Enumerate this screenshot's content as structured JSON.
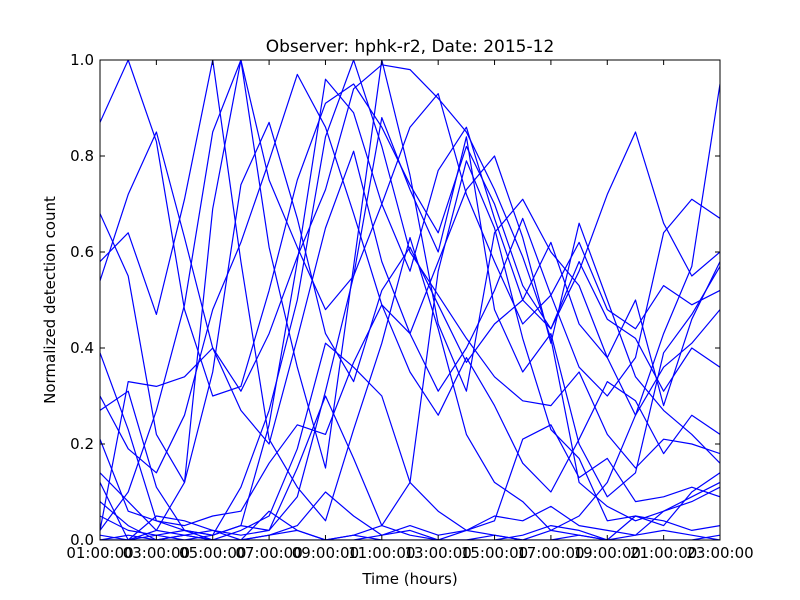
{
  "chart_data": {
    "type": "line",
    "title": "Observer: hphk-r2, Date: 2015-12",
    "xlabel": "Time (hours)",
    "ylabel": "Normalized detection count",
    "xlim": [
      1,
      23
    ],
    "ylim": [
      0,
      1
    ],
    "x_tick_labels": [
      "01:00:00",
      "03:00:00",
      "05:00:00",
      "07:00:00",
      "09:00:00",
      "11:00:00",
      "13:00:00",
      "15:00:00",
      "17:00:00",
      "19:00:00",
      "21:00:00",
      "23:00:00"
    ],
    "y_tick_labels": [
      "0.0",
      "0.2",
      "0.4",
      "0.6",
      "0.8",
      "1.0"
    ],
    "line_color": "#0000ff",
    "grid": false,
    "x": [
      1,
      2,
      3,
      4,
      5,
      6,
      7,
      8,
      9,
      10,
      11,
      12,
      13,
      14,
      15,
      16,
      17,
      18,
      19,
      20,
      21,
      22,
      23
    ],
    "series": [
      {
        "values": [
          0.87,
          1.0,
          0.83,
          0.48,
          0.3,
          0.32,
          0.52,
          0.75,
          0.91,
          0.95,
          0.86,
          0.74,
          0.64,
          0.82,
          0.7,
          0.53,
          0.44,
          0.56,
          0.72,
          0.85,
          0.66,
          0.55,
          0.6
        ]
      },
      {
        "values": [
          0.68,
          0.55,
          0.22,
          0.12,
          0.69,
          1.0,
          0.61,
          0.36,
          0.15,
          0.57,
          1.0,
          0.76,
          0.45,
          0.31,
          0.64,
          0.71,
          0.6,
          0.53,
          0.38,
          0.5,
          0.28,
          0.46,
          0.58
        ]
      },
      {
        "values": [
          0.39,
          0.23,
          0.04,
          0.02,
          0.01,
          0.03,
          0.24,
          0.58,
          0.96,
          0.89,
          0.7,
          0.56,
          0.77,
          0.86,
          0.67,
          0.5,
          0.62,
          0.45,
          0.38,
          0.26,
          0.36,
          0.41,
          0.48
        ]
      },
      {
        "values": [
          0.27,
          0.31,
          0.11,
          0.02,
          0.01,
          0.03,
          0.02,
          0.09,
          0.31,
          0.55,
          0.88,
          0.73,
          0.6,
          0.84,
          0.48,
          0.35,
          0.43,
          0.2,
          0.09,
          0.14,
          0.39,
          0.47,
          0.57
        ]
      },
      {
        "values": [
          0.58,
          0.64,
          0.47,
          0.71,
          1.0,
          0.58,
          0.21,
          0.11,
          0.04,
          0.23,
          0.41,
          0.63,
          0.44,
          0.22,
          0.12,
          0.08,
          0.02,
          0.05,
          0.12,
          0.26,
          0.43,
          0.57,
          0.95
        ]
      },
      {
        "values": [
          0.14,
          0.08,
          0.02,
          0.12,
          0.35,
          0.74,
          0.87,
          0.67,
          0.43,
          0.33,
          0.52,
          0.61,
          0.49,
          0.37,
          0.45,
          0.5,
          0.44,
          0.58,
          0.46,
          0.42,
          0.31,
          0.4,
          0.36
        ]
      },
      {
        "values": [
          0.05,
          0.02,
          0.01,
          0.0,
          0.01,
          0.11,
          0.27,
          0.5,
          0.84,
          1.0,
          0.82,
          0.6,
          0.51,
          0.42,
          0.34,
          0.29,
          0.28,
          0.35,
          0.22,
          0.15,
          0.21,
          0.2,
          0.18
        ]
      },
      {
        "values": [
          0.02,
          0.33,
          0.32,
          0.34,
          0.4,
          0.31,
          0.43,
          0.59,
          0.73,
          0.94,
          0.99,
          0.98,
          0.92,
          0.85,
          0.73,
          0.59,
          0.42,
          0.12,
          0.07,
          0.04,
          0.06,
          0.08,
          0.11
        ]
      },
      {
        "values": [
          0.21,
          0.06,
          0.04,
          0.03,
          0.05,
          0.06,
          0.16,
          0.24,
          0.22,
          0.37,
          0.49,
          0.43,
          0.58,
          0.73,
          0.8,
          0.63,
          0.41,
          0.66,
          0.5,
          0.34,
          0.27,
          0.22,
          0.16
        ]
      },
      {
        "values": [
          0.01,
          0.0,
          0.05,
          0.04,
          0.02,
          0.01,
          0.02,
          0.15,
          0.3,
          0.17,
          0.03,
          0.12,
          0.56,
          0.79,
          0.65,
          0.42,
          0.23,
          0.17,
          0.04,
          0.05,
          0.03,
          0.1,
          0.14
        ]
      },
      {
        "values": [
          0.08,
          0.03,
          0.0,
          0.01,
          0.02,
          0.0,
          0.01,
          0.03,
          0.1,
          0.05,
          0.01,
          0.03,
          0.01,
          0.02,
          0.05,
          0.04,
          0.07,
          0.03,
          0.02,
          0.01,
          0.06,
          0.09,
          0.12
        ]
      },
      {
        "values": [
          0.0,
          0.01,
          0.0,
          0.01,
          0.0,
          0.0,
          0.01,
          0.02,
          0.0,
          0.01,
          0.03,
          0.01,
          0.0,
          0.02,
          0.01,
          0.0,
          0.02,
          0.01,
          0.0,
          0.01,
          0.02,
          0.01,
          0.0
        ]
      },
      {
        "values": [
          0.0,
          0.0,
          0.0,
          0.0,
          0.0,
          0.0,
          0.0,
          0.0,
          0.0,
          0.01,
          0.0,
          0.0,
          0.0,
          0.0,
          0.01,
          0.0,
          0.0,
          0.01,
          0.0,
          0.0,
          0.0,
          0.0,
          0.01
        ]
      },
      {
        "values": [
          0.0,
          0.0,
          0.01,
          0.02,
          0.0,
          0.0,
          0.06,
          0.02,
          0.0,
          0.0,
          0.01,
          0.02,
          0.0,
          0.0,
          0.0,
          0.01,
          0.03,
          0.02,
          0.0,
          0.05,
          0.04,
          0.02,
          0.03
        ]
      },
      {
        "values": [
          0.12,
          0.0,
          0.02,
          0.01,
          0.0,
          0.02,
          0.05,
          0.19,
          0.41,
          0.36,
          0.3,
          0.12,
          0.06,
          0.02,
          0.04,
          0.21,
          0.24,
          0.13,
          0.17,
          0.08,
          0.09,
          0.11,
          0.09
        ]
      },
      {
        "values": [
          0.54,
          0.72,
          0.85,
          0.63,
          0.4,
          0.27,
          0.2,
          0.42,
          0.65,
          0.81,
          0.58,
          0.43,
          0.31,
          0.4,
          0.52,
          0.67,
          0.51,
          0.62,
          0.48,
          0.44,
          0.53,
          0.49,
          0.52
        ]
      },
      {
        "values": [
          0.02,
          0.1,
          0.27,
          0.49,
          0.85,
          1.0,
          0.75,
          0.61,
          0.48,
          0.55,
          0.7,
          0.86,
          0.93,
          0.72,
          0.58,
          0.45,
          0.51,
          0.36,
          0.3,
          0.38,
          0.64,
          0.71,
          0.67
        ]
      },
      {
        "values": [
          0.3,
          0.19,
          0.14,
          0.26,
          0.48,
          0.62,
          0.79,
          0.97,
          0.86,
          0.68,
          0.49,
          0.35,
          0.26,
          0.38,
          0.28,
          0.16,
          0.1,
          0.21,
          0.33,
          0.29,
          0.18,
          0.26,
          0.22
        ]
      }
    ]
  }
}
